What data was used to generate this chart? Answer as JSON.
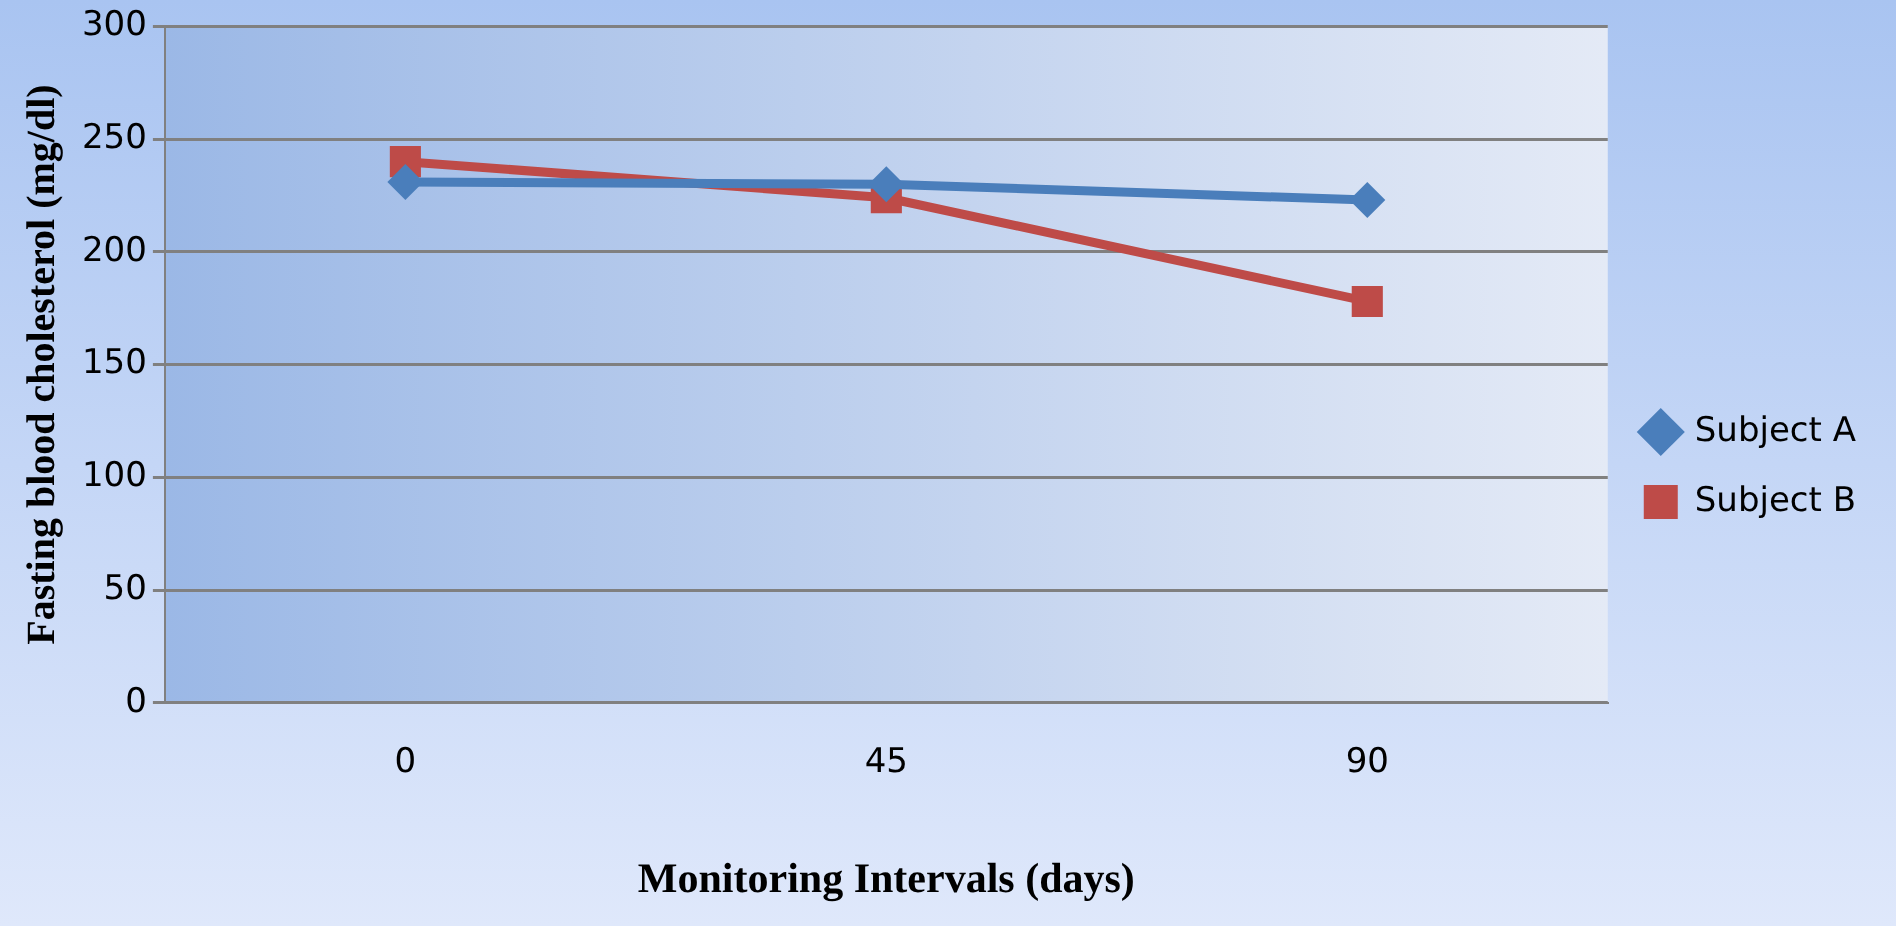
{
  "chart_data": {
    "type": "line",
    "xlabel": "Monitoring Intervals (days)",
    "ylabel": "Fasting blood cholesterol (mg/dl)",
    "categories": [
      "0",
      "45",
      "90"
    ],
    "series": [
      {
        "name": "Subject A",
        "color": "#4a7ebb",
        "marker": "diamond",
        "values": [
          231,
          230,
          223
        ]
      },
      {
        "name": "Subject B",
        "color": "#be4b48",
        "marker": "square",
        "values": [
          240,
          224,
          178
        ]
      }
    ],
    "ylim": [
      0,
      300
    ],
    "yticks": [
      0,
      50,
      100,
      150,
      200,
      250,
      300
    ],
    "grid": "y",
    "legend": "right"
  }
}
